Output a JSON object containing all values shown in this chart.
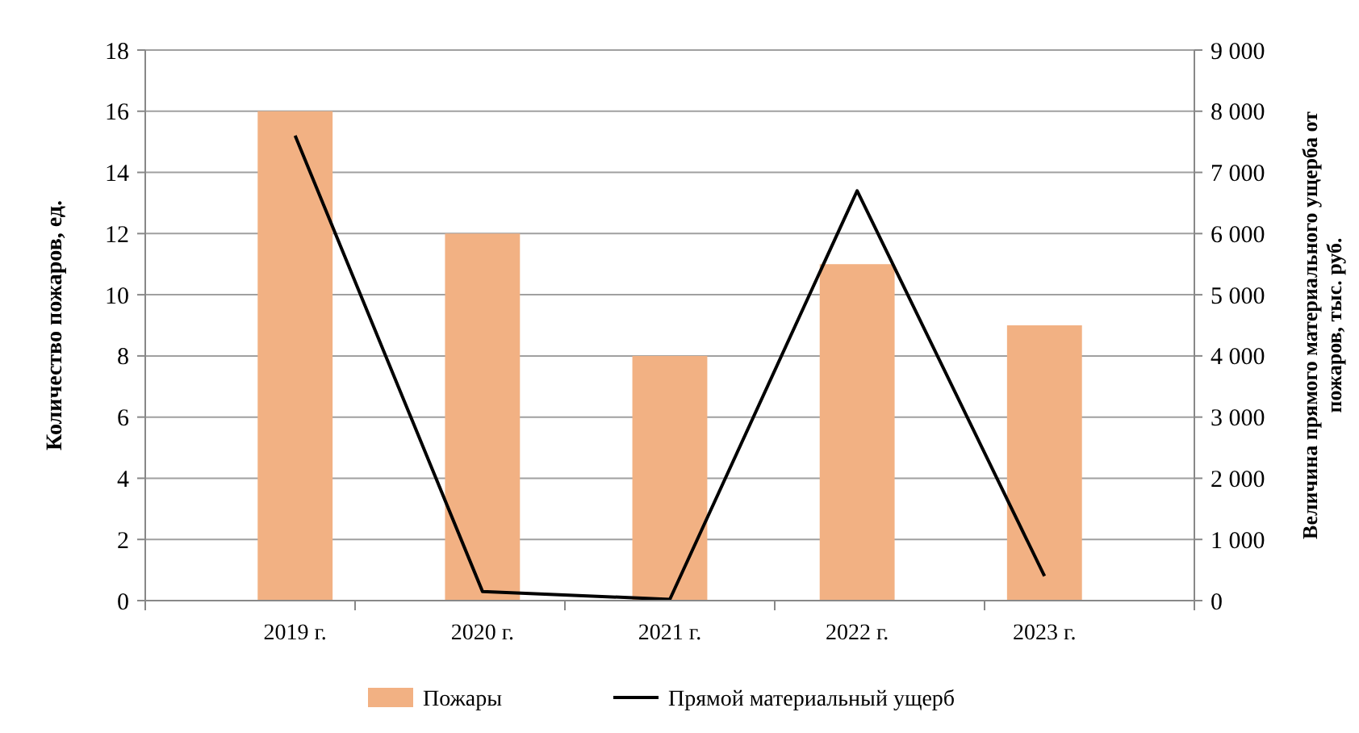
{
  "chart_data": {
    "type": "bar",
    "categories": [
      "2019 г.",
      "2020 г.",
      "2021 г.",
      "2022 г.",
      "2023 г."
    ],
    "series": [
      {
        "name": "Пожары",
        "color": "#f2b183",
        "values": [
          16,
          12,
          8,
          11,
          9
        ]
      },
      {
        "name": "Прямой материальный ущерб",
        "type": "line",
        "axis": "y2",
        "color": "#000000",
        "values": [
          7600,
          150,
          20,
          6700,
          400
        ]
      }
    ],
    "ylabel": "Количество пожаров, ед.",
    "y2label": "Величина прямого материального ущерба от пожаров, тыс. руб.",
    "ylim": [
      0,
      18
    ],
    "yticks": [
      0,
      2,
      4,
      6,
      8,
      10,
      12,
      14,
      16,
      18
    ],
    "y2lim": [
      0,
      9000
    ],
    "y2ticks": [
      {
        "value": 0,
        "label": "0"
      },
      {
        "value": 1000,
        "label": "1 000"
      },
      {
        "value": 2000,
        "label": "2 000"
      },
      {
        "value": 3000,
        "label": "3 000"
      },
      {
        "value": 4000,
        "label": "4 000"
      },
      {
        "value": 5000,
        "label": "5 000"
      },
      {
        "value": 6000,
        "label": "6 000"
      },
      {
        "value": 7000,
        "label": "7 000"
      },
      {
        "value": 8000,
        "label": "8 000"
      },
      {
        "value": 9000,
        "label": "9 000"
      }
    ],
    "grid": "y",
    "legend": "bottom",
    "marker": "none",
    "line_style": "solid"
  }
}
